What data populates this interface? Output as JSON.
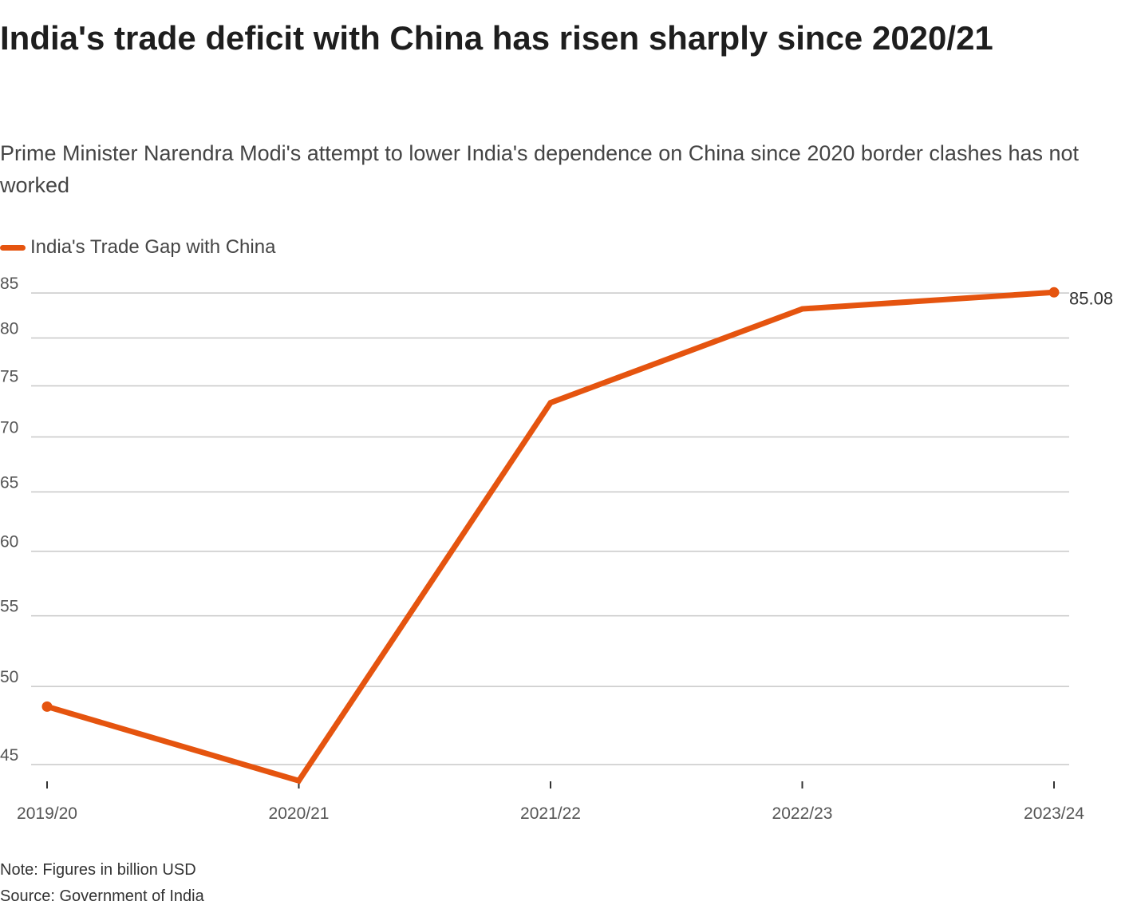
{
  "title": "India's trade deficit with China has risen sharply since 2020/21",
  "subtitle": "Prime Minister Narendra Modi's attempt to lower India's dependence on China since 2020 border clashes has not worked",
  "note": "Note: Figures in billion USD",
  "source": "Source: Government of India",
  "chart_data": {
    "type": "line",
    "title": "India's trade deficit with China has risen sharply since 2020/21",
    "categories": [
      "2019/20",
      "2020/21",
      "2021/22",
      "2022/23",
      "2023/24"
    ],
    "series": [
      {
        "name": "India's Trade Gap with China",
        "values": [
          48.66,
          44.03,
          73.31,
          83.2,
          85.08
        ],
        "color": "#E5540F"
      }
    ],
    "y_scale": "log",
    "yticks": [
      45,
      50,
      55,
      60,
      65,
      70,
      75,
      80,
      85
    ],
    "ylim": [
      45,
      85
    ],
    "grid": true,
    "legend": "top-left",
    "end_label": "85.08",
    "xlabel": "",
    "ylabel": ""
  }
}
